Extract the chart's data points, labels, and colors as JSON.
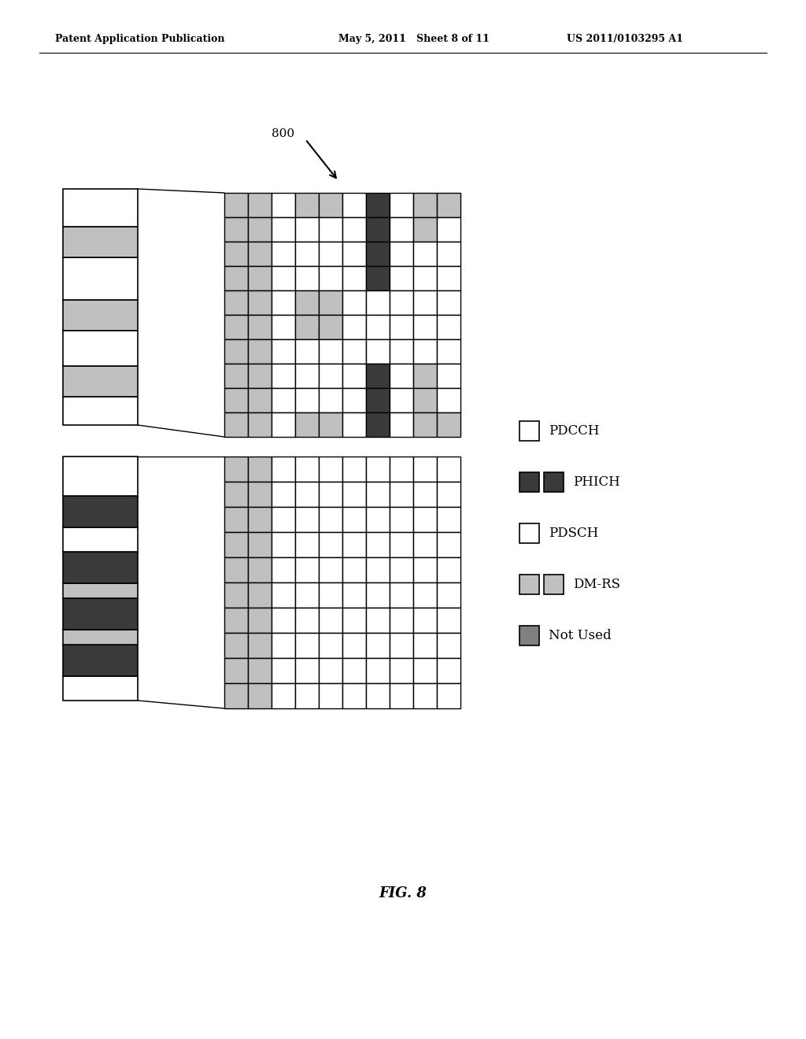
{
  "header_left": "Patent Application Publication",
  "header_mid": "May 5, 2011   Sheet 8 of 11",
  "header_right": "US 2011/0103295 A1",
  "fig_label": "FIG. 8",
  "label_800": "800",
  "color_white": "#ffffff",
  "color_light_gray": "#c0c0c0",
  "color_dark_gray": "#3a3a3a",
  "color_med_gray": "#808080",
  "legend_items": [
    {
      "label": "PDCCH",
      "color": "#ffffff",
      "edge": "#000000",
      "double": false
    },
    {
      "label": "PHICH",
      "color": "#3a3a3a",
      "edge": "#000000",
      "double": true
    },
    {
      "label": "PDSCH",
      "color": "#ffffff",
      "edge": "#000000",
      "double": false
    },
    {
      "label": "DM-RS",
      "color": "#c0c0c0",
      "edge": "#000000",
      "double": true
    },
    {
      "label": "Not Used",
      "color": "#808080",
      "edge": "#000000",
      "double": false
    }
  ],
  "top_bar_segments": [
    [
      0.12,
      "#ffffff"
    ],
    [
      0.13,
      "#c0c0c0"
    ],
    [
      0.15,
      "#ffffff"
    ],
    [
      0.13,
      "#c0c0c0"
    ],
    [
      0.18,
      "#ffffff"
    ],
    [
      0.13,
      "#c0c0c0"
    ],
    [
      0.16,
      "#ffffff"
    ]
  ],
  "bot_bar_segments": [
    [
      0.1,
      "#ffffff"
    ],
    [
      0.13,
      "#3a3a3a"
    ],
    [
      0.06,
      "#c0c0c0"
    ],
    [
      0.13,
      "#3a3a3a"
    ],
    [
      0.06,
      "#c0c0c0"
    ],
    [
      0.13,
      "#3a3a3a"
    ],
    [
      0.1,
      "#ffffff"
    ],
    [
      0.13,
      "#3a3a3a"
    ],
    [
      0.16,
      "#ffffff"
    ]
  ],
  "top_grid": [
    [
      "G",
      "G",
      "W",
      "G",
      "G",
      "W",
      "D",
      "W",
      "G",
      "G"
    ],
    [
      "G",
      "G",
      "W",
      "W",
      "W",
      "W",
      "D",
      "W",
      "G",
      "W"
    ],
    [
      "G",
      "G",
      "W",
      "W",
      "W",
      "W",
      "D",
      "W",
      "W",
      "W"
    ],
    [
      "G",
      "G",
      "W",
      "W",
      "W",
      "W",
      "D",
      "W",
      "W",
      "W"
    ],
    [
      "G",
      "G",
      "W",
      "G",
      "G",
      "W",
      "W",
      "W",
      "W",
      "W"
    ],
    [
      "G",
      "G",
      "W",
      "G",
      "G",
      "W",
      "W",
      "W",
      "W",
      "W"
    ],
    [
      "G",
      "G",
      "W",
      "W",
      "W",
      "W",
      "W",
      "W",
      "W",
      "W"
    ],
    [
      "G",
      "G",
      "W",
      "W",
      "W",
      "W",
      "D",
      "W",
      "G",
      "W"
    ],
    [
      "G",
      "G",
      "W",
      "W",
      "W",
      "W",
      "D",
      "W",
      "G",
      "W"
    ],
    [
      "G",
      "G",
      "W",
      "G",
      "G",
      "W",
      "D",
      "W",
      "G",
      "G"
    ]
  ],
  "bot_grid": [
    [
      "G",
      "G",
      "W",
      "W",
      "W",
      "W",
      "W",
      "W",
      "W",
      "W"
    ],
    [
      "G",
      "G",
      "W",
      "W",
      "W",
      "W",
      "W",
      "W",
      "W",
      "W"
    ],
    [
      "G",
      "G",
      "W",
      "W",
      "W",
      "W",
      "W",
      "W",
      "W",
      "W"
    ],
    [
      "G",
      "G",
      "W",
      "W",
      "W",
      "W",
      "W",
      "W",
      "W",
      "W"
    ],
    [
      "G",
      "G",
      "W",
      "W",
      "W",
      "W",
      "W",
      "W",
      "W",
      "W"
    ],
    [
      "G",
      "G",
      "W",
      "W",
      "W",
      "W",
      "W",
      "W",
      "W",
      "W"
    ],
    [
      "G",
      "G",
      "W",
      "W",
      "W",
      "W",
      "W",
      "W",
      "W",
      "W"
    ],
    [
      "G",
      "G",
      "W",
      "W",
      "W",
      "W",
      "W",
      "W",
      "W",
      "W"
    ],
    [
      "G",
      "G",
      "W",
      "W",
      "W",
      "W",
      "W",
      "W",
      "W",
      "W"
    ],
    [
      "G",
      "G",
      "W",
      "W",
      "W",
      "W",
      "W",
      "W",
      "W",
      "W"
    ]
  ]
}
